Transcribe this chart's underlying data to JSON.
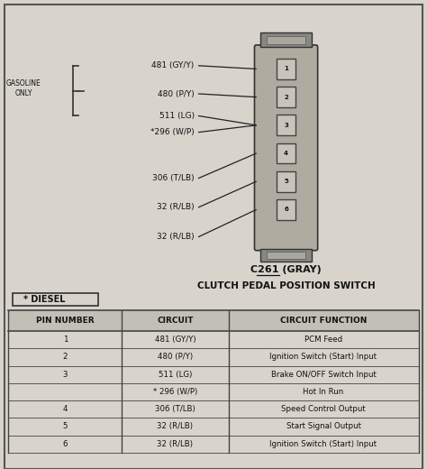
{
  "bg_color": "#d8d4cc",
  "title_connector": "C261 (GRAY)",
  "title_switch": "CLUTCH PEDAL POSITION SWITCH",
  "diesel_label": "* DIESEL",
  "gasoline_label": "GASOLINE\nONLY",
  "wire_labels": [
    "481 (GY/Y)",
    "480 (P/Y)",
    "511 (LG)",
    "*296 (W/P)",
    "306 (T/LB)",
    "32 (R/LB)",
    "32 (R/LB)"
  ],
  "pin_numbers": [
    "1",
    "2",
    "3",
    "4",
    "5",
    "6"
  ],
  "table_headers": [
    "PIN NUMBER",
    "CIRCUIT",
    "CIRCUIT FUNCTION"
  ],
  "table_rows": [
    [
      "1",
      "481 (GY/Y)",
      "PCM Feed"
    ],
    [
      "2",
      "480 (P/Y)",
      "Ignition Switch (Start) Input"
    ],
    [
      "3",
      "511 (LG)",
      "Brake ON/OFF Switch Input"
    ],
    [
      "",
      "* 296 (W/P)",
      "Hot In Run"
    ],
    [
      "4",
      "306 (T/LB)",
      "Speed Control Output"
    ],
    [
      "5",
      "32 (R/LB)",
      "Start Signal Output"
    ],
    [
      "6",
      "32 (R/LB)",
      "Ignition Switch (Start) Input"
    ]
  ]
}
